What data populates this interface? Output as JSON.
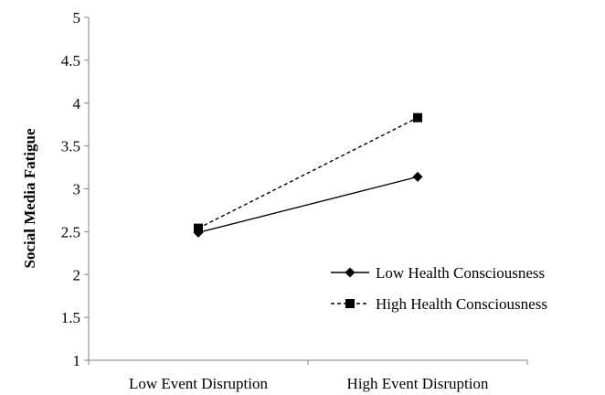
{
  "chart_data": {
    "type": "line",
    "categories": [
      "Low Event Disruption",
      "High Event Disruption"
    ],
    "series": [
      {
        "name": "Low Health Consciousness",
        "values": [
          2.49,
          3.14
        ],
        "line_style": "solid",
        "marker": "diamond"
      },
      {
        "name": "High Health Consciousness",
        "values": [
          2.54,
          3.83
        ],
        "line_style": "dashed",
        "marker": "square"
      }
    ],
    "title": "",
    "xlabel": "",
    "ylabel": "Social Media Fatigue",
    "ylim": [
      1,
      5
    ],
    "yticks": [
      "1",
      "1.5",
      "2",
      "2.5",
      "3",
      "3.5",
      "4",
      "4.5",
      "5"
    ],
    "grid": false,
    "legend_position": "right",
    "colors": {
      "line": "#000000",
      "axis": "#808080"
    }
  }
}
